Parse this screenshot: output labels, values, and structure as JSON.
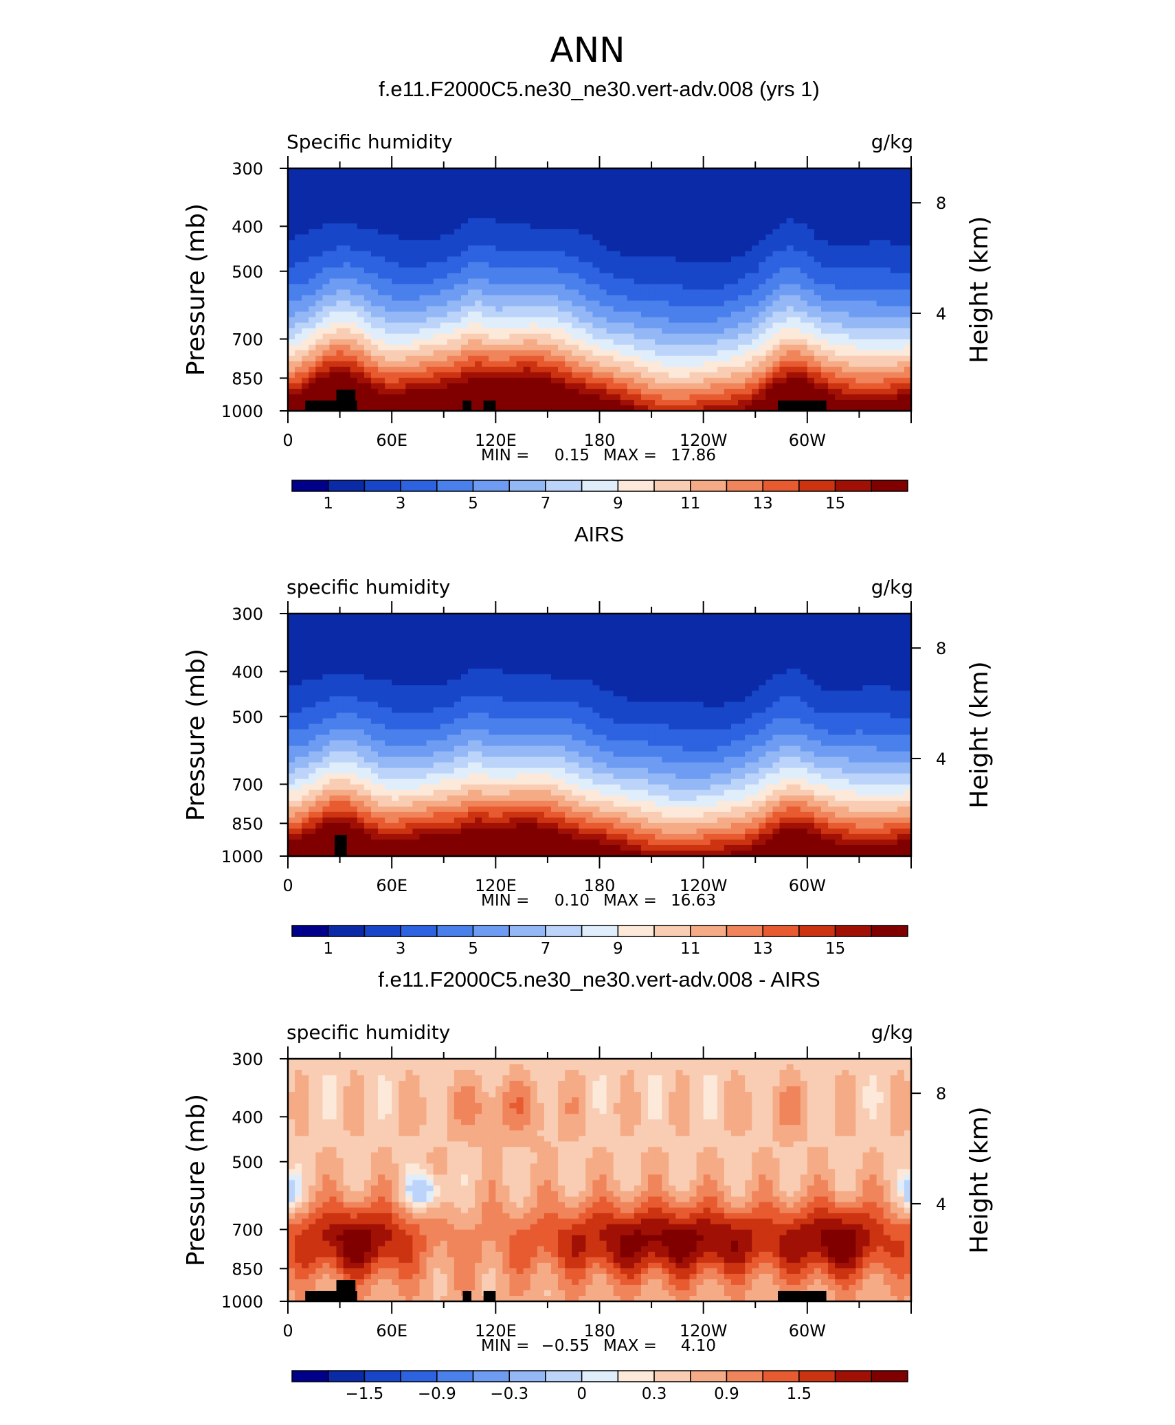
{
  "title": "ANN",
  "colors": {
    "scale": [
      "#00008b",
      "#0a2aa8",
      "#1846c8",
      "#2d62e0",
      "#4a80ec",
      "#6e9cf2",
      "#94b8f6",
      "#bcd4f9",
      "#e0eefc",
      "#fde9d9",
      "#f9cdb3",
      "#f5ab86",
      "#f0845a",
      "#e85a30",
      "#cc3311",
      "#a01005",
      "#800000"
    ],
    "landmask": "#000000"
  },
  "chart_data": [
    {
      "type": "heatmap",
      "title": "f.e11.F2000C5.ne30_ne30.vert-adv.008 (yrs 1)",
      "left_label": "Specific humidity",
      "right_label": "g/kg",
      "ylabel": "Pressure (mb)",
      "ylabel_right": "Height (km)",
      "x_ticks": [
        "0",
        "60E",
        "120E",
        "180",
        "120W",
        "60W"
      ],
      "x_range": [
        0,
        360
      ],
      "y_ticks": [
        "300",
        "400",
        "500",
        "700",
        "850",
        "1000"
      ],
      "y_range_mb": [
        1000,
        300
      ],
      "y_scale": "log",
      "right_ticks": [
        "8",
        "4"
      ],
      "min_label": "MIN =",
      "min_value": "0.15",
      "max_label": "MAX =",
      "max_value": "17.86",
      "colorbar_labels": [
        "1",
        "3",
        "5",
        "7",
        "9",
        "11",
        "13",
        "15"
      ],
      "levels": [
        0,
        1,
        2,
        3,
        4,
        5,
        6,
        7,
        8,
        9,
        10,
        11,
        12,
        13,
        14,
        15,
        16
      ],
      "field": "humidity",
      "mode": "model",
      "data_min": 0.15,
      "data_max": 17.86,
      "topography": [
        {
          "lon": [
            10,
            40
          ],
          "p_top": 950
        },
        {
          "lon": [
            28,
            39
          ],
          "p_top": 900
        },
        {
          "lon": [
            101,
            106
          ],
          "p_top": 950
        },
        {
          "lon": [
            113,
            120
          ],
          "p_top": 950
        },
        {
          "lon": [
            283,
            311
          ],
          "p_top": 950
        }
      ]
    },
    {
      "type": "heatmap",
      "title": "AIRS",
      "left_label": "specific humidity",
      "right_label": "g/kg",
      "ylabel": "Pressure (mb)",
      "ylabel_right": "Height (km)",
      "x_ticks": [
        "0",
        "60E",
        "120E",
        "180",
        "120W",
        "60W"
      ],
      "x_range": [
        0,
        360
      ],
      "y_ticks": [
        "300",
        "400",
        "500",
        "700",
        "850",
        "1000"
      ],
      "y_range_mb": [
        1000,
        300
      ],
      "y_scale": "log",
      "right_ticks": [
        "8",
        "4"
      ],
      "min_label": "MIN =",
      "min_value": "0.10",
      "max_label": "MAX =",
      "max_value": "16.63",
      "colorbar_labels": [
        "1",
        "3",
        "5",
        "7",
        "9",
        "11",
        "13",
        "15"
      ],
      "levels": [
        0,
        1,
        2,
        3,
        4,
        5,
        6,
        7,
        8,
        9,
        10,
        11,
        12,
        13,
        14,
        15,
        16
      ],
      "field": "humidity",
      "mode": "obs",
      "data_min": 0.1,
      "data_max": 16.63,
      "topography": [
        {
          "lon": [
            27,
            34
          ],
          "p_top": 900
        }
      ]
    },
    {
      "type": "heatmap",
      "title": "f.e11.F2000C5.ne30_ne30.vert-adv.008 - AIRS",
      "left_label": "specific humidity",
      "right_label": "g/kg",
      "ylabel": "Pressure (mb)",
      "ylabel_right": "Height (km)",
      "x_ticks": [
        "0",
        "60E",
        "120E",
        "180",
        "120W",
        "60W"
      ],
      "x_range": [
        0,
        360
      ],
      "y_ticks": [
        "300",
        "400",
        "500",
        "700",
        "850",
        "1000"
      ],
      "y_range_mb": [
        1000,
        300
      ],
      "y_scale": "log",
      "right_ticks": [
        "8",
        "4"
      ],
      "min_label": "MIN =",
      "min_value": "−0.55",
      "max_label": "MAX =",
      "max_value": "4.10",
      "colorbar_labels": [
        "−1.5",
        "−0.9",
        "−0.3",
        "0",
        "0.3",
        "0.9",
        "1.5"
      ],
      "levels": [
        -2.1,
        -1.8,
        -1.5,
        -1.2,
        -0.9,
        -0.6,
        -0.3,
        0,
        0.15,
        0.3,
        0.6,
        0.9,
        1.2,
        1.5,
        1.8,
        2.1
      ],
      "field": "difference",
      "mode": "diff",
      "data_min": -0.55,
      "data_max": 4.1,
      "topography": [
        {
          "lon": [
            10,
            40
          ],
          "p_top": 950
        },
        {
          "lon": [
            28,
            39
          ],
          "p_top": 900
        },
        {
          "lon": [
            101,
            106
          ],
          "p_top": 950
        },
        {
          "lon": [
            113,
            120
          ],
          "p_top": 950
        },
        {
          "lon": [
            283,
            311
          ],
          "p_top": 950
        }
      ]
    }
  ]
}
